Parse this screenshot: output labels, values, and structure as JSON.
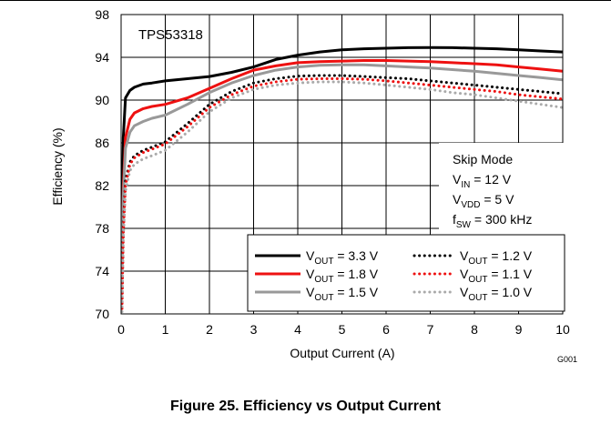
{
  "figure": {
    "caption": "Figure 25. Efficiency vs Output Current"
  },
  "chart_data": {
    "type": "line",
    "title": "TPS53318",
    "figure_id": "G001",
    "xlabel": "Output Current (A)",
    "ylabel": "Efficiency (%)",
    "xlim": [
      0,
      10
    ],
    "ylim": [
      70,
      98
    ],
    "xticks": [
      0,
      1,
      2,
      3,
      4,
      5,
      6,
      7,
      8,
      9,
      10
    ],
    "yticks": [
      70,
      74,
      78,
      82,
      86,
      90,
      94,
      98
    ],
    "grid": true,
    "legend_position": "bottom-right",
    "conditions": {
      "mode": "Skip Mode",
      "vin": {
        "sym": "V",
        "sub": "IN",
        "rest": " = 12 V"
      },
      "vvdd": {
        "sym": "V",
        "sub": "VDD",
        "rest": " = 5 V"
      },
      "fsw": {
        "sym": "f",
        "sub": "SW",
        "rest": " = 300 kHz"
      }
    },
    "series": [
      {
        "name": "VOUT = 3.3 V",
        "label_sym": "V",
        "label_sub": "OUT",
        "label_rest": " = 3.3 V",
        "color": "#000000",
        "style": "solid",
        "x": [
          0.02,
          0.05,
          0.1,
          0.2,
          0.3,
          0.5,
          0.7,
          1,
          1.5,
          2,
          2.5,
          3,
          3.5,
          4,
          4.5,
          5,
          5.5,
          6,
          6.5,
          7,
          7.5,
          8,
          8.5,
          9,
          9.5,
          10
        ],
        "y": [
          79,
          86.5,
          90.2,
          90.9,
          91.2,
          91.5,
          91.6,
          91.8,
          92.0,
          92.2,
          92.6,
          93.1,
          93.8,
          94.2,
          94.5,
          94.7,
          94.8,
          94.85,
          94.9,
          94.92,
          94.9,
          94.85,
          94.8,
          94.7,
          94.6,
          94.5
        ]
      },
      {
        "name": "VOUT = 1.8 V",
        "label_sym": "V",
        "label_sub": "OUT",
        "label_rest": " = 1.8 V",
        "color": "#ee1111",
        "style": "solid",
        "x": [
          0.02,
          0.05,
          0.1,
          0.2,
          0.3,
          0.5,
          0.7,
          1,
          1.5,
          2,
          2.5,
          3,
          3.5,
          4,
          4.5,
          5,
          5.5,
          6,
          6.5,
          7,
          7.5,
          8,
          8.5,
          9,
          9.5,
          10
        ],
        "y": [
          75,
          82,
          86.5,
          88.2,
          88.8,
          89.2,
          89.4,
          89.6,
          90.2,
          91.1,
          92.0,
          92.8,
          93.2,
          93.5,
          93.6,
          93.65,
          93.7,
          93.7,
          93.65,
          93.6,
          93.5,
          93.4,
          93.3,
          93.1,
          92.9,
          92.7
        ]
      },
      {
        "name": "VOUT = 1.5 V",
        "label_sym": "V",
        "label_sub": "OUT",
        "label_rest": " = 1.5 V",
        "color": "#999999",
        "style": "solid",
        "x": [
          0.02,
          0.05,
          0.1,
          0.2,
          0.3,
          0.5,
          0.7,
          1,
          1.5,
          2,
          2.5,
          3,
          3.5,
          4,
          4.5,
          5,
          5.5,
          6,
          6.5,
          7,
          7.5,
          8,
          8.5,
          9,
          9.5,
          10
        ],
        "y": [
          74,
          81,
          85.5,
          87.0,
          87.6,
          88.0,
          88.3,
          88.6,
          89.6,
          90.7,
          91.6,
          92.3,
          92.8,
          93.1,
          93.25,
          93.3,
          93.3,
          93.2,
          93.1,
          93.0,
          92.85,
          92.7,
          92.5,
          92.3,
          92.1,
          91.9
        ]
      },
      {
        "name": "VOUT = 1.2 V",
        "label_sym": "V",
        "label_sub": "OUT",
        "label_rest": " = 1.2 V",
        "color": "#000000",
        "style": "dotted",
        "x": [
          0.02,
          0.05,
          0.1,
          0.2,
          0.3,
          0.5,
          0.7,
          1,
          1.5,
          2,
          2.5,
          3,
          3.5,
          4,
          4.5,
          5,
          5.5,
          6,
          6.5,
          7,
          7.5,
          8,
          8.5,
          9,
          9.5,
          10
        ],
        "y": [
          71,
          78,
          82.5,
          84.2,
          84.8,
          85.3,
          85.6,
          86.1,
          87.8,
          89.6,
          90.8,
          91.6,
          92.0,
          92.25,
          92.3,
          92.3,
          92.2,
          92.1,
          92.0,
          91.8,
          91.6,
          91.4,
          91.2,
          91.0,
          90.8,
          90.6
        ]
      },
      {
        "name": "VOUT = 1.1 V",
        "label_sym": "V",
        "label_sub": "OUT",
        "label_rest": " = 1.1 V",
        "color": "#ee1111",
        "style": "dotted",
        "x": [
          0.02,
          0.05,
          0.1,
          0.2,
          0.3,
          0.5,
          0.7,
          1,
          1.5,
          2,
          2.5,
          3,
          3.5,
          4,
          4.5,
          5,
          5.5,
          6,
          6.5,
          7,
          7.5,
          8,
          8.5,
          9,
          9.5,
          10
        ],
        "y": [
          70.5,
          77.5,
          82.0,
          84.0,
          84.6,
          85.1,
          85.4,
          85.9,
          87.5,
          89.3,
          90.5,
          91.3,
          91.7,
          91.95,
          92.0,
          92.0,
          91.95,
          91.8,
          91.6,
          91.4,
          91.2,
          91.0,
          90.8,
          90.5,
          90.3,
          90.1
        ]
      },
      {
        "name": "VOUT = 1.0 V",
        "label_sym": "V",
        "label_sub": "OUT",
        "label_rest": " = 1.0 V",
        "color": "#aaaaaa",
        "style": "dotted",
        "x": [
          0.02,
          0.05,
          0.1,
          0.2,
          0.3,
          0.5,
          0.7,
          1,
          1.5,
          2,
          2.5,
          3,
          3.5,
          4,
          4.5,
          5,
          5.5,
          6,
          6.5,
          7,
          7.5,
          8,
          8.5,
          9,
          9.5,
          10
        ],
        "y": [
          70.2,
          77.0,
          81.5,
          83.4,
          84.0,
          84.5,
          84.8,
          85.3,
          87.0,
          88.9,
          90.2,
          91.0,
          91.4,
          91.6,
          91.7,
          91.7,
          91.6,
          91.4,
          91.2,
          91.0,
          90.7,
          90.5,
          90.2,
          89.9,
          89.6,
          89.3
        ]
      }
    ]
  }
}
